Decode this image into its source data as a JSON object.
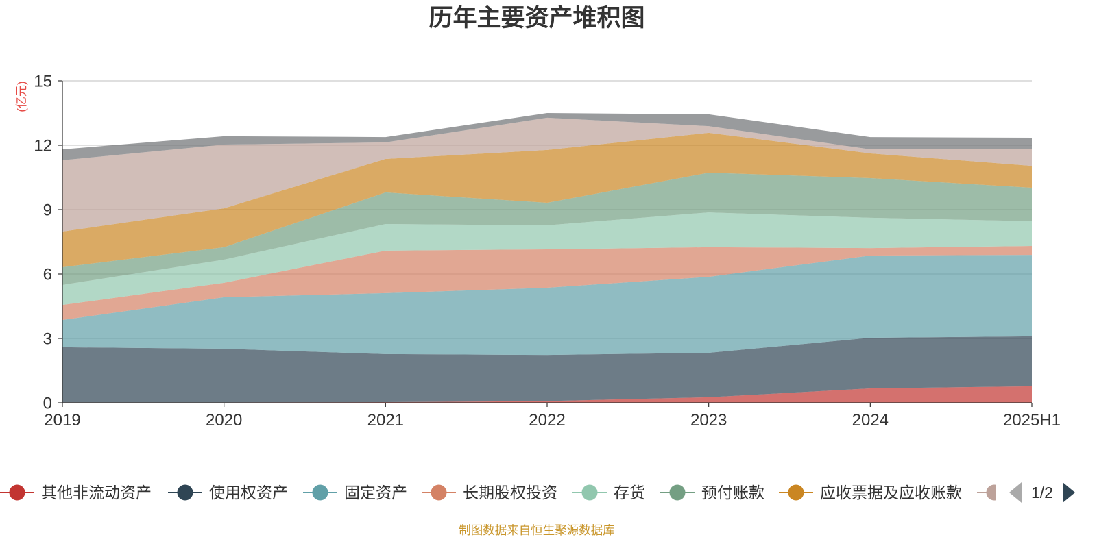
{
  "chart_data": {
    "type": "area",
    "stacked": true,
    "title": "历年主要资产堆积图",
    "xlabel": "",
    "ylabel": "(亿元)",
    "categories": [
      "2019",
      "2020",
      "2021",
      "2022",
      "2023",
      "2024",
      "2025H1"
    ],
    "ylim": [
      0,
      15
    ],
    "yticks": [
      0,
      3,
      6,
      9,
      12,
      15
    ],
    "grid": true,
    "series": [
      {
        "name": "其他非流动资产",
        "color": "#c23531",
        "values": [
          0.02,
          0.02,
          0.03,
          0.08,
          0.26,
          0.67,
          0.77
        ]
      },
      {
        "name": "使用权资产",
        "color": "#2f4554",
        "values": [
          2.57,
          2.5,
          2.24,
          2.15,
          2.07,
          2.36,
          2.33
        ]
      },
      {
        "name": "固定资产",
        "color": "#61a0a8",
        "values": [
          1.27,
          2.4,
          2.84,
          3.13,
          3.54,
          3.83,
          3.79
        ]
      },
      {
        "name": "长期股权投资",
        "color": "#d48265",
        "values": [
          0.7,
          0.67,
          1.98,
          1.79,
          1.38,
          0.35,
          0.42
        ]
      },
      {
        "name": "存货",
        "color": "#91c7ae",
        "values": [
          0.93,
          1.08,
          1.24,
          1.12,
          1.62,
          1.41,
          1.15
        ]
      },
      {
        "name": "预付账款",
        "color": "#749f83",
        "values": [
          0.83,
          0.58,
          1.47,
          1.05,
          1.85,
          1.85,
          1.56
        ]
      },
      {
        "name": "应收票据及应收账款",
        "color": "#ca8622",
        "values": [
          1.66,
          1.81,
          1.56,
          2.46,
          1.86,
          1.15,
          1.02
        ]
      },
      {
        "name": "",
        "color": "#bda29a",
        "values": [
          3.32,
          2.97,
          0.77,
          1.5,
          0.31,
          0.19,
          0.77
        ]
      },
      {
        "name": "",
        "color": "#6e7074",
        "values": [
          0.51,
          0.39,
          0.25,
          0.22,
          0.55,
          0.57,
          0.54
        ]
      }
    ],
    "legend": {
      "position": "bottom",
      "page_indicator": "1/2"
    }
  },
  "source_note": "制图数据来自恒生聚源数据库",
  "colors": {
    "title": "#333333",
    "y_axis_name": "#e64a45",
    "source_note": "#c9962b",
    "pager_inactive": "#aaaaaa",
    "pager_active": "#2f4554"
  },
  "icons": {
    "legend_prev": "triangle-left-icon",
    "legend_next": "triangle-right-icon"
  }
}
